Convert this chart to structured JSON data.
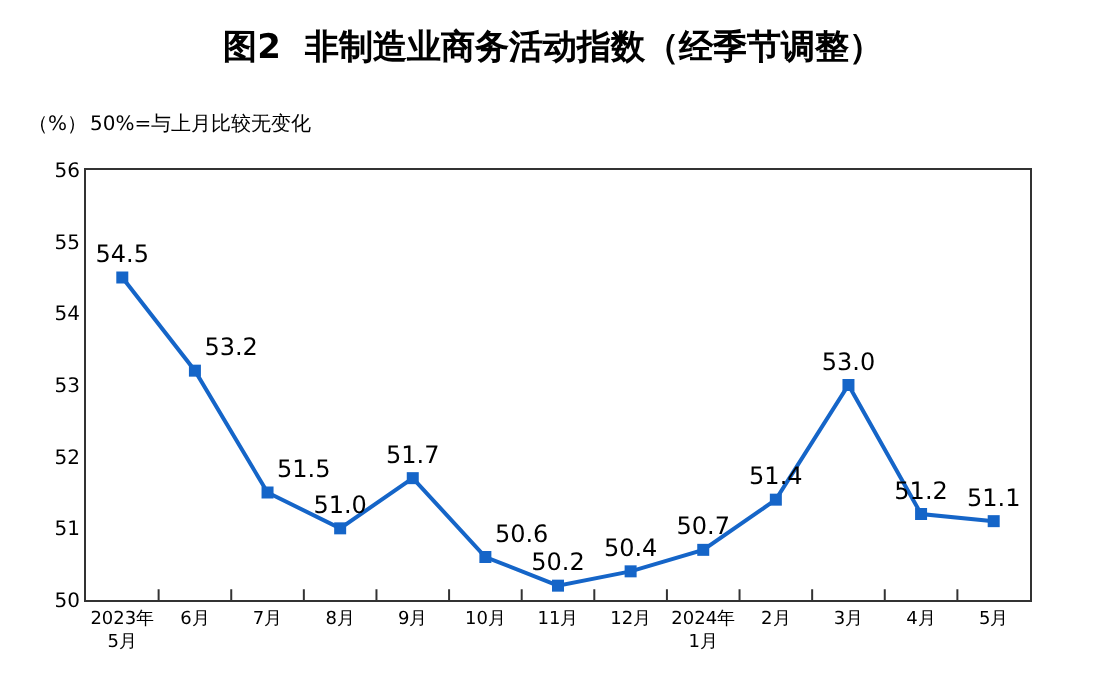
{
  "chart_data": {
    "type": "line",
    "title": "图2  非制造业商务活动指数（经季节调整）",
    "ylabel": "（%）",
    "annotations": [
      "50%=与上月比较无变化"
    ],
    "categories": [
      "2023年\n5月",
      "6月",
      "7月",
      "8月",
      "9月",
      "10月",
      "11月",
      "12月",
      "2024年\n1月",
      "2月",
      "3月",
      "4月",
      "5月"
    ],
    "series": [
      {
        "color": "#1565c8",
        "values": [
          54.5,
          53.2,
          51.5,
          51.0,
          51.7,
          50.6,
          50.2,
          50.4,
          50.7,
          51.4,
          53.0,
          51.2,
          51.1
        ],
        "value_labels": [
          "54.5",
          "53.2",
          "51.5",
          "51.0",
          "51.7",
          "50.6",
          "50.2",
          "50.4",
          "50.7",
          "51.4",
          "53.0",
          "51.2",
          "51.1"
        ]
      }
    ],
    "ylim": [
      50,
      56
    ],
    "yticks": [
      50,
      51,
      52,
      53,
      54,
      55,
      56
    ],
    "grid": false,
    "marker": "square",
    "line_style": "solid"
  }
}
